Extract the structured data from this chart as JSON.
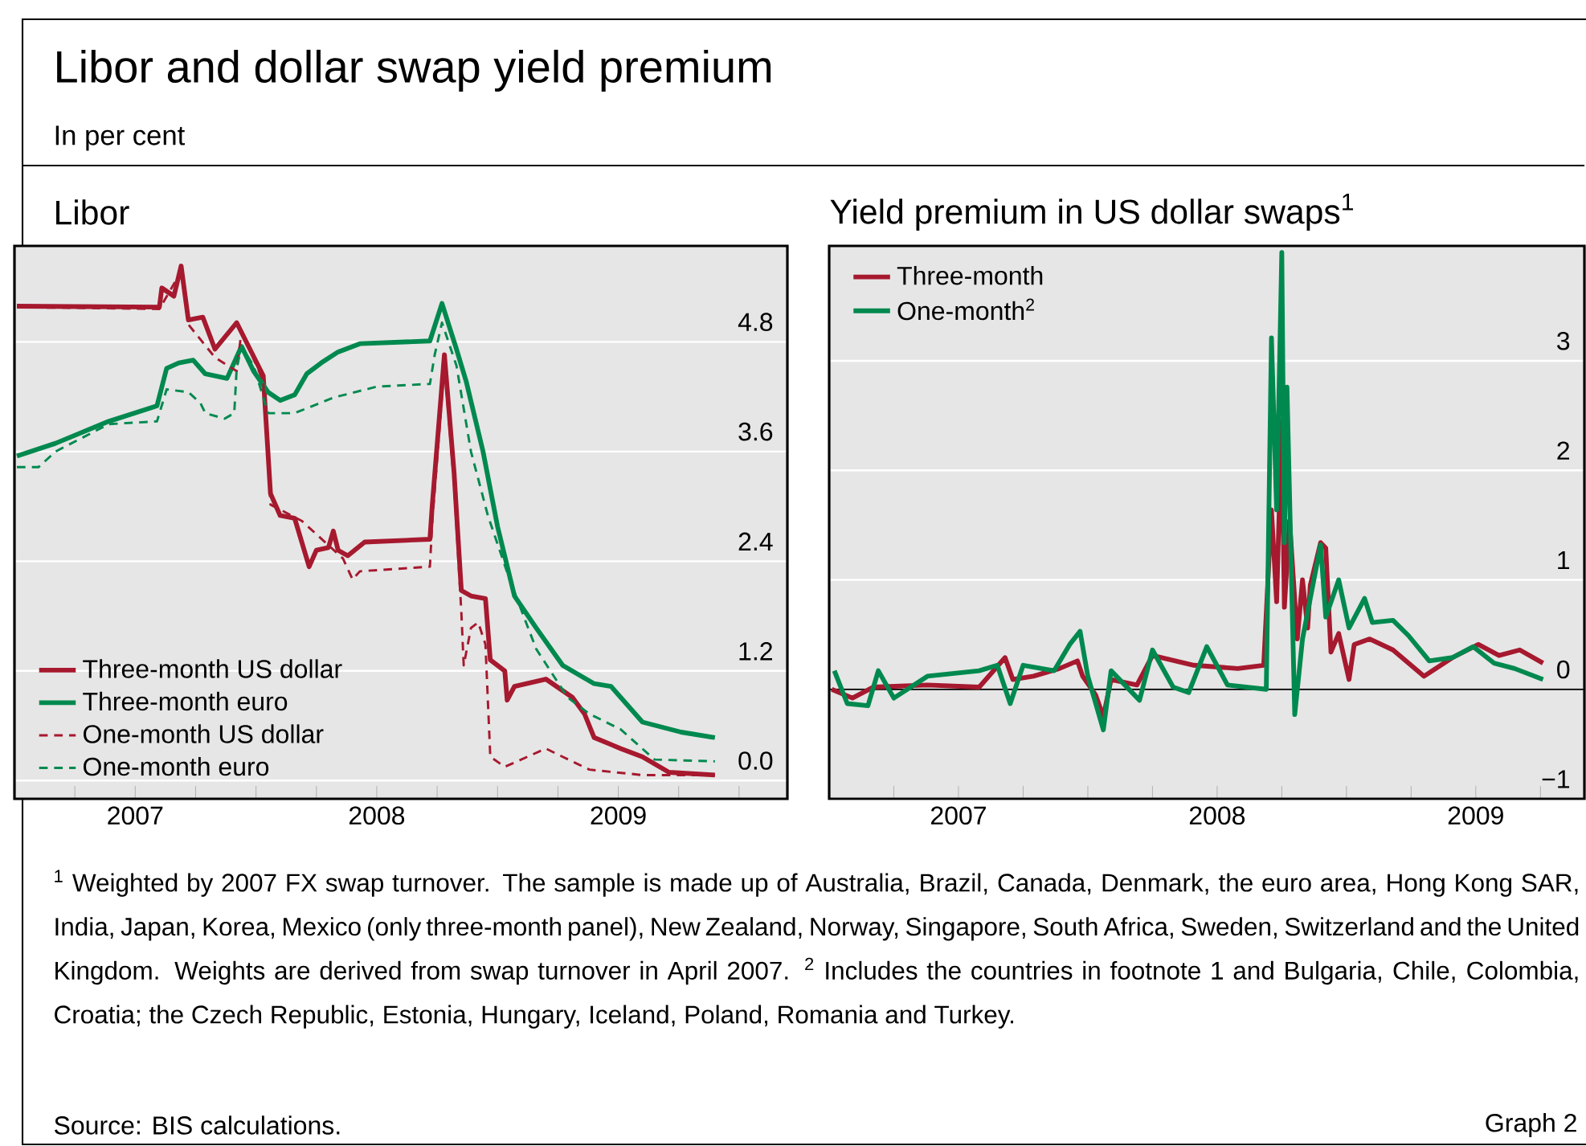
{
  "chart_data": [
    {
      "type": "line",
      "title": "Libor",
      "annotations": [
        "Libor and dollar swap yield premium",
        "In per cent"
      ],
      "xlim": [
        2007.0,
        2010.2
      ],
      "ylim": [
        -0.2,
        5.85
      ],
      "xticks": [
        {
          "value": 2007.25,
          "label": null
        },
        {
          "value": 2007.5,
          "label": "2007"
        },
        {
          "value": 2007.75,
          "label": null
        },
        {
          "value": 2008.0,
          "label": null
        },
        {
          "value": 2008.25,
          "label": null
        },
        {
          "value": 2008.5,
          "label": "2008"
        },
        {
          "value": 2008.75,
          "label": null
        },
        {
          "value": 2009.0,
          "label": null
        },
        {
          "value": 2009.25,
          "label": null
        },
        {
          "value": 2009.5,
          "label": "2009"
        },
        {
          "value": 2009.75,
          "label": null
        },
        {
          "value": 2010.0,
          "label": null
        }
      ],
      "yticks": [
        {
          "value": 0,
          "label": "0.0"
        },
        {
          "value": 1.2,
          "label": "1.2"
        },
        {
          "value": 2.4,
          "label": "2.4"
        },
        {
          "value": 3.6,
          "label": "3.6"
        },
        {
          "value": 4.8,
          "label": "4.8"
        }
      ],
      "grid": "y",
      "legend": "bottom left",
      "series": [
        {
          "name": "Three-month US dollar",
          "color": "#a6192e",
          "line_style": "solid",
          "x": [
            2007.01,
            2007.6,
            2007.61,
            2007.66,
            2007.69,
            2007.72,
            2007.78,
            2007.83,
            2007.92,
            2008.03,
            2008.06,
            2008.1,
            2008.16,
            2008.22,
            2008.25,
            2008.3,
            2008.32,
            2008.34,
            2008.38,
            2008.45,
            2008.72,
            2008.73,
            2008.78,
            2008.82,
            2008.85,
            2008.89,
            2008.95,
            2008.97,
            2009.03,
            2009.04,
            2009.07,
            2009.2,
            2009.31,
            2009.36,
            2009.4,
            2009.51,
            2009.6,
            2009.71,
            2009.9
          ],
          "values": [
            5.19,
            5.18,
            5.39,
            5.3,
            5.63,
            5.04,
            5.07,
            4.72,
            5.01,
            4.43,
            3.14,
            2.9,
            2.87,
            2.34,
            2.52,
            2.55,
            2.73,
            2.52,
            2.46,
            2.61,
            2.64,
            3.02,
            4.66,
            3.37,
            2.08,
            2.02,
            1.99,
            1.32,
            1.2,
            0.88,
            1.03,
            1.11,
            0.91,
            0.73,
            0.47,
            0.35,
            0.26,
            0.09,
            0.06
          ]
        },
        {
          "name": "Three-month euro",
          "color": "#00894f",
          "line_style": "solid",
          "x": [
            2007.01,
            2007.17,
            2007.39,
            2007.59,
            2007.63,
            2007.68,
            2007.74,
            2007.79,
            2007.88,
            2007.94,
            2007.99,
            2008.05,
            2008.1,
            2008.16,
            2008.21,
            2008.27,
            2008.34,
            2008.43,
            2008.72,
            2008.77,
            2008.83,
            2008.87,
            2008.94,
            2009.0,
            2009.07,
            2009.16,
            2009.27,
            2009.4,
            2009.47,
            2009.6,
            2009.76,
            2009.9
          ],
          "values": [
            3.55,
            3.69,
            3.93,
            4.1,
            4.51,
            4.57,
            4.6,
            4.45,
            4.4,
            4.75,
            4.48,
            4.25,
            4.16,
            4.22,
            4.45,
            4.57,
            4.69,
            4.78,
            4.81,
            5.22,
            4.72,
            4.37,
            3.6,
            2.78,
            2.02,
            1.67,
            1.26,
            1.06,
            1.03,
            0.64,
            0.53,
            0.47
          ]
        },
        {
          "name": "One-month US dollar",
          "color": "#a6192e",
          "line_style": "dashed",
          "x": [
            2007.01,
            2007.6,
            2007.69,
            2007.72,
            2007.83,
            2007.92,
            2007.94,
            2008.03,
            2008.06,
            2008.19,
            2008.36,
            2008.4,
            2008.43,
            2008.72,
            2008.73,
            2008.78,
            2008.82,
            2008.85,
            2008.86,
            2008.89,
            2008.92,
            2008.95,
            2008.97,
            2009.03,
            2009.2,
            2009.27,
            2009.38,
            2009.6,
            2009.9
          ],
          "values": [
            5.18,
            5.16,
            5.57,
            4.99,
            4.63,
            4.48,
            4.92,
            4.37,
            3.02,
            2.84,
            2.43,
            2.2,
            2.29,
            2.34,
            2.84,
            4.54,
            3.25,
            1.85,
            1.26,
            1.67,
            1.73,
            1.49,
            0.26,
            0.15,
            0.35,
            0.26,
            0.12,
            0.06,
            0.06
          ]
        },
        {
          "name": "One-month euro",
          "color": "#00894f",
          "line_style": "dashed",
          "x": [
            2007.01,
            2007.1,
            2007.17,
            2007.39,
            2007.59,
            2007.63,
            2007.72,
            2007.77,
            2007.79,
            2007.87,
            2007.91,
            2007.92,
            2007.94,
            2007.99,
            2008.05,
            2008.16,
            2008.32,
            2008.5,
            2008.72,
            2008.74,
            2008.77,
            2008.83,
            2008.89,
            2008.96,
            2009.05,
            2009.16,
            2009.29,
            2009.38,
            2009.51,
            2009.65,
            2009.9
          ],
          "values": [
            3.43,
            3.43,
            3.6,
            3.9,
            3.93,
            4.28,
            4.25,
            4.13,
            4.02,
            3.96,
            4.02,
            4.51,
            4.75,
            4.54,
            4.02,
            4.02,
            4.19,
            4.31,
            4.34,
            4.66,
            5.01,
            4.54,
            3.6,
            2.9,
            2.2,
            1.44,
            0.91,
            0.73,
            0.56,
            0.23,
            0.21
          ]
        }
      ]
    },
    {
      "type": "line",
      "title": "Yield premium in US dollar swaps$^{1}$",
      "annotations": [
        "$^{1}$ Weighted by 2007 FX swap turnover. The sample is made up of Australia, Brazil, Canada, Denmark, the euro area, Hong Kong SAR, India, Japan, Korea, Mexico (only three-month panel), New Zealand, Norway, Singapore, South Africa, Sweden, Switzerland and the United Kingdom. Weights are derived from swap turnover in April 2007. $^{2}$ Includes the countries in footnote 1 and Bulgaria, Chile, Colombia, Croatia; the Czech Republic, Estonia, Hungary, Iceland, Poland, Romania and Turkey.",
        "Source: BIS calculations.",
        "Graph 2"
      ],
      "xlim": [
        2007.0,
        2009.92
      ],
      "ylim": [
        -1,
        4.05
      ],
      "xticks": [
        {
          "value": 2007.25,
          "label": null
        },
        {
          "value": 2007.5,
          "label": "2007"
        },
        {
          "value": 2007.75,
          "label": null
        },
        {
          "value": 2008.0,
          "label": null
        },
        {
          "value": 2008.25,
          "label": null
        },
        {
          "value": 2008.5,
          "label": "2008"
        },
        {
          "value": 2008.75,
          "label": null
        },
        {
          "value": 2009.0,
          "label": null
        },
        {
          "value": 2009.25,
          "label": null
        },
        {
          "value": 2009.5,
          "label": "2009"
        },
        {
          "value": 2009.75,
          "label": null
        }
      ],
      "yticks": [
        {
          "value": -1,
          "label": "−1"
        },
        0,
        1,
        2,
        3
      ],
      "grid": "y",
      "legend": "top left",
      "ref_lines": [
        {
          "axis": "y",
          "value": 0,
          "color": "#000000"
        }
      ],
      "series": [
        {
          "name": "Three-month",
          "color": "#a6192e",
          "x": [
            2007.01,
            2007.09,
            2007.17,
            2007.38,
            2007.58,
            2007.68,
            2007.71,
            2007.79,
            2007.89,
            2007.96,
            2007.98,
            2008.03,
            2008.06,
            2008.09,
            2008.19,
            2008.25,
            2008.41,
            2008.58,
            2008.68,
            2008.71,
            2008.73,
            2008.75,
            2008.76,
            2008.78,
            2008.81,
            2008.83,
            2008.85,
            2008.86,
            2008.9,
            2008.92,
            2008.94,
            2008.97,
            2009.01,
            2009.03,
            2009.09,
            2009.18,
            2009.3,
            2009.41,
            2009.51,
            2009.59,
            2009.67,
            2009.76
          ],
          "values": [
            0.0,
            -0.08,
            0.02,
            0.04,
            0.02,
            0.29,
            0.09,
            0.12,
            0.19,
            0.26,
            0.12,
            -0.05,
            -0.25,
            0.09,
            0.04,
            0.31,
            0.22,
            0.19,
            0.22,
            1.64,
            0.8,
            2.45,
            0.75,
            1.54,
            0.46,
            1.0,
            0.56,
            0.95,
            1.34,
            1.29,
            0.34,
            0.51,
            0.09,
            0.41,
            0.46,
            0.36,
            0.12,
            0.29,
            0.41,
            0.31,
            0.36,
            0.24
          ]
        },
        {
          "name": "One-month$^{2}$",
          "color": "#00894f",
          "x": [
            2007.02,
            2007.07,
            2007.15,
            2007.19,
            2007.25,
            2007.38,
            2007.58,
            2007.65,
            2007.7,
            2007.75,
            2007.87,
            2007.93,
            2007.97,
            2008.0,
            2008.06,
            2008.09,
            2008.2,
            2008.25,
            2008.33,
            2008.39,
            2008.46,
            2008.54,
            2008.69,
            2008.71,
            2008.73,
            2008.75,
            2008.76,
            2008.77,
            2008.8,
            2008.83,
            2008.9,
            2008.92,
            2008.97,
            2009.01,
            2009.07,
            2009.1,
            2009.18,
            2009.24,
            2009.32,
            2009.41,
            2009.49,
            2009.57,
            2009.65,
            2009.76
          ],
          "values": [
            0.17,
            -0.13,
            -0.15,
            0.17,
            -0.08,
            0.12,
            0.17,
            0.22,
            -0.13,
            0.22,
            0.17,
            0.41,
            0.53,
            0.12,
            -0.37,
            0.17,
            -0.1,
            0.36,
            0.02,
            -0.03,
            0.39,
            0.04,
            0.0,
            3.21,
            1.64,
            3.99,
            1.34,
            2.76,
            -0.23,
            0.46,
            1.32,
            0.66,
            1.0,
            0.56,
            0.83,
            0.61,
            0.63,
            0.49,
            0.26,
            0.29,
            0.39,
            0.24,
            0.19,
            0.09
          ]
        }
      ]
    }
  ]
}
